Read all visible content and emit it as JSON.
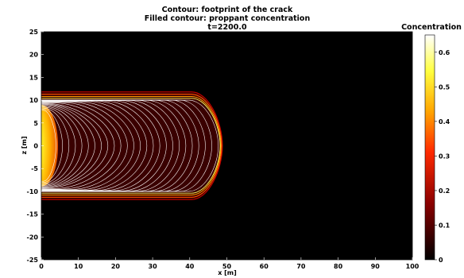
{
  "chart_data": {
    "type": "contour",
    "title_lines": [
      "Contour: footprint of the crack",
      "Filled contour: proppant concentration",
      "t=2200.0"
    ],
    "xlabel": "x [m]",
    "ylabel": "z [m]",
    "xlim": [
      0,
      100
    ],
    "ylim": [
      -25,
      25
    ],
    "xticks": [
      0,
      10,
      20,
      30,
      40,
      50,
      60,
      70,
      80,
      90,
      100
    ],
    "yticks": [
      -25,
      -20,
      -15,
      -10,
      -5,
      0,
      5,
      10,
      15,
      20,
      25
    ],
    "crack_footprint": {
      "half_height": 10.2,
      "tip_x": 48.5,
      "rounding_start_x": 40.5
    },
    "proppant": {
      "front_x_max": 4.5,
      "front_half_height": 9
    },
    "colorbar": {
      "label": "Concentration",
      "range": [
        0,
        0.65
      ],
      "ticks": [
        0,
        0.1,
        0.2,
        0.3,
        0.4,
        0.5,
        0.6
      ],
      "tick_labels": [
        "0",
        "0.1",
        "0.2",
        "0.3",
        "0.4",
        "0.5",
        "0.6"
      ]
    },
    "background": "#000000"
  }
}
